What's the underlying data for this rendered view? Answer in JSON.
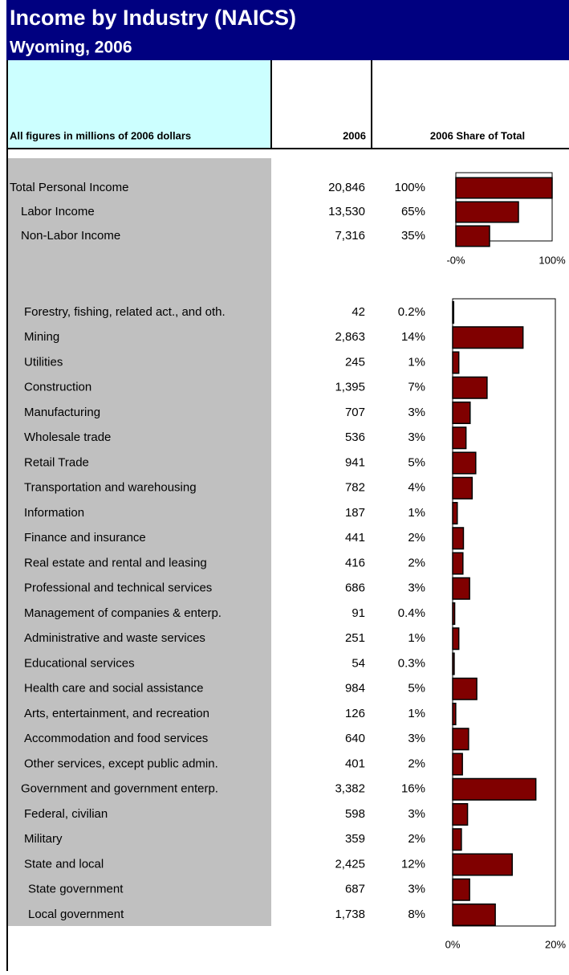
{
  "header": {
    "title": "Income by Industry (NAICS)",
    "subtitle": "Wyoming, 2006"
  },
  "columns": {
    "label": "All figures in millions of 2006 dollars",
    "value": "2006",
    "share": "2006 Share of Total"
  },
  "summary_rows": [
    {
      "label": "Total Personal Income",
      "value": "20,846"
    },
    {
      "label": "Labor Income",
      "value": "13,530"
    },
    {
      "label": "Non-Labor Income",
      "value": "7,316"
    }
  ],
  "industry_rows": [
    {
      "label": "Forestry, fishing, related act., and oth.",
      "value": "42"
    },
    {
      "label": "Mining",
      "value": "2,863"
    },
    {
      "label": "Utilities",
      "value": "245"
    },
    {
      "label": "Construction",
      "value": "1,395"
    },
    {
      "label": "Manufacturing",
      "value": "707"
    },
    {
      "label": "Wholesale trade",
      "value": "536"
    },
    {
      "label": "Retail Trade",
      "value": "941"
    },
    {
      "label": "Transportation and warehousing",
      "value": "782"
    },
    {
      "label": "Information",
      "value": "187"
    },
    {
      "label": "Finance and insurance",
      "value": "441"
    },
    {
      "label": "Real estate and rental and leasing",
      "value": "416"
    },
    {
      "label": "Professional and technical services",
      "value": "686"
    },
    {
      "label": "Management of companies & enterp.",
      "value": "91"
    },
    {
      "label": "Administrative and waste services",
      "value": "251"
    },
    {
      "label": "Educational services",
      "value": "54"
    },
    {
      "label": "Health care and social assistance",
      "value": "984"
    },
    {
      "label": "Arts, entertainment, and recreation",
      "value": "126"
    },
    {
      "label": "Accommodation and food services",
      "value": "640"
    },
    {
      "label": "Other services, except public admin.",
      "value": "401"
    },
    {
      "label": "Government and government enterp.",
      "value": "3,382"
    },
    {
      "label": "Federal, civilian",
      "value": "598"
    },
    {
      "label": "Military",
      "value": "359"
    },
    {
      "label": "State and local",
      "value": "2,425"
    },
    {
      "label": "State government",
      "value": "687"
    },
    {
      "label": "Local government",
      "value": "1,738"
    }
  ],
  "chart_data": [
    {
      "type": "bar",
      "orientation": "horizontal",
      "color": "#800000",
      "values": [
        100,
        65,
        35
      ],
      "value_labels": [
        "100%",
        "65%",
        "35%"
      ],
      "xlim": [
        0,
        100
      ],
      "xticks": [
        {
          "value": 0,
          "label": "-0%"
        },
        {
          "value": 100,
          "label": "100%"
        }
      ]
    },
    {
      "type": "bar",
      "orientation": "horizontal",
      "color": "#800000",
      "values": [
        0.2,
        13.7,
        1.2,
        6.7,
        3.4,
        2.6,
        4.5,
        3.8,
        0.9,
        2.1,
        2.0,
        3.3,
        0.4,
        1.2,
        0.3,
        4.7,
        0.6,
        3.1,
        1.9,
        16.2,
        2.9,
        1.7,
        11.6,
        3.3,
        8.3
      ],
      "value_labels": [
        "0.2%",
        "14%",
        "1%",
        "7%",
        "3%",
        "3%",
        "5%",
        "4%",
        "1%",
        "2%",
        "2%",
        "3%",
        "0.4%",
        "1%",
        "0.3%",
        "5%",
        "1%",
        "3%",
        "2%",
        "16%",
        "3%",
        "2%",
        "12%",
        "3%",
        "8%"
      ],
      "xlim": [
        0,
        20
      ],
      "xticks": [
        {
          "value": 0,
          "label": "0%"
        },
        {
          "value": 20,
          "label": "20%"
        }
      ]
    }
  ]
}
